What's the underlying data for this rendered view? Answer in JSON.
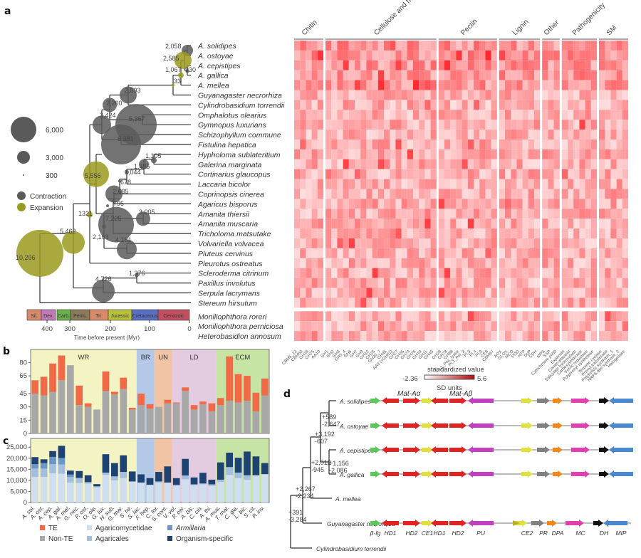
{
  "panels": {
    "a": "a",
    "b": "b",
    "c": "c",
    "d": "d"
  },
  "panel_a": {
    "species": [
      "A. solidipes",
      "A. ostoyae",
      "A. cepistipes",
      "A. gallica",
      "A. mellea",
      "Guyanagaster necrorhiza",
      "Cylindrobasidium torrendii",
      "Omphalotus olearius",
      "Gymnopus luxurians",
      "Schizophyllum commune",
      "Fistulina hepatica",
      "Hypholoma sublateritium",
      "Galerina marginata",
      "Cortinarius glaucopus",
      "Laccaria bicolor",
      "Coprinopsis cinerea",
      "Agaricus bisporus",
      "Amanita thiersii",
      "Amanita muscaria",
      "Tricholoma matsutake",
      "Volvariella volvacea",
      "Pluteus cervinus",
      "Pleurotus ostreatus",
      "Scleroderma citrinum",
      "Paxillus involutus",
      "Serpula lacrymans",
      "Stereum hirsutum",
      "Moniliophthora roreri",
      "Moniliophthora perniciosa",
      "Heterobasidion annosum"
    ],
    "nodes": [
      {
        "label": "2,058",
        "type": "contraction",
        "value": 2058
      },
      {
        "label": "2,585",
        "type": "expansion",
        "value": 2585
      },
      {
        "label": "1,067",
        "type": "expansion",
        "value": 1067
      },
      {
        "label": "930",
        "type": "contraction",
        "value": 930
      },
      {
        "label": "33",
        "type": "expansion",
        "value": 33
      },
      {
        "label": "2,893",
        "type": "contraction",
        "value": 2893
      },
      {
        "label": "2,260",
        "type": "contraction",
        "value": 2260
      },
      {
        "label": "3,424",
        "type": "contraction",
        "value": 3424
      },
      {
        "label": "5,367",
        "type": "contraction",
        "value": 5367
      },
      {
        "label": "8,381",
        "type": "contraction",
        "value": 8381
      },
      {
        "label": "1,105",
        "type": "contraction",
        "value": 1105
      },
      {
        "label": "1,485",
        "type": "contraction",
        "value": 1485
      },
      {
        "label": "1,044",
        "type": "contraction",
        "value": 1044
      },
      {
        "label": "5,556",
        "type": "expansion",
        "value": 5556
      },
      {
        "label": "678",
        "type": "contraction",
        "value": 678
      },
      {
        "label": "2,685",
        "type": "contraction",
        "value": 2685
      },
      {
        "label": "795",
        "type": "contraction",
        "value": 795
      },
      {
        "label": "3,005",
        "type": "contraction",
        "value": 3005
      },
      {
        "label": "1321",
        "type": "expansion",
        "value": 1321
      },
      {
        "label": "7,225",
        "type": "contraction",
        "value": 7225
      },
      {
        "label": "2,163",
        "type": "contraction",
        "value": 2163
      },
      {
        "label": "4,181",
        "type": "contraction",
        "value": 4181
      },
      {
        "label": "5,462",
        "type": "expansion",
        "value": 5462
      },
      {
        "label": "10,296",
        "type": "expansion",
        "value": 10296
      },
      {
        "label": "1,376",
        "type": "contraction",
        "value": 1376
      },
      {
        "label": "4,726",
        "type": "contraction",
        "value": 4726
      }
    ],
    "size_legend": [
      {
        "label": "6,000",
        "value": 6000
      },
      {
        "label": "3,000",
        "value": 3000
      },
      {
        "label": "300",
        "value": 300
      }
    ],
    "type_legend": [
      {
        "label": "Contraction",
        "color": "#5a5a5a"
      },
      {
        "label": "Expansion",
        "color": "#9a9a1e"
      }
    ],
    "periods": [
      {
        "label": "Sil.",
        "color": "#d98a6a"
      },
      {
        "label": "Dev.",
        "color": "#c07ab8"
      },
      {
        "label": "Carb.",
        "color": "#6ab04c"
      },
      {
        "label": "Perm.",
        "color": "#8a7a5a"
      },
      {
        "label": "Tri.",
        "color": "#d98a6a"
      },
      {
        "label": "Jurassic",
        "color": "#b9c23a"
      },
      {
        "label": "Cretaceous",
        "color": "#5a6fc0"
      },
      {
        "label": "Cenozoic",
        "color": "#c05060"
      }
    ],
    "time_ticks": [
      "400",
      "300",
      "200",
      "100",
      "0"
    ],
    "time_axis_label": "Time before present (Myr)",
    "heatmap": {
      "groups": [
        "Chitin",
        "Cellulose and hemicellulose",
        "Pectin",
        "Lignin",
        "Other",
        "Pathogenicity",
        "SM"
      ],
      "columns": [
        "CBM5_12",
        "CBM50",
        "GH18",
        "GH75",
        "AA10",
        "GH1",
        "GH2",
        "GH3",
        "GH5_4",
        "GH6",
        "GH7",
        "GH9",
        "GH12",
        "GH26",
        "GH30_7",
        "GH45",
        "AA9 (=GH61)",
        "GH27",
        "GH35",
        "GH74",
        "GH76",
        "GH10",
        "GH11",
        "GH43",
        "GH28",
        "GH78",
        "GH88",
        "PL1_Pec_lyase",
        "PL1_Pel_3",
        "PL3",
        "PL4",
        "PL9",
        "CE8",
        "CBM67",
        "AOX",
        "GLOX",
        "MCO",
        "POD",
        "HTP",
        "DyP",
        "CDH",
        "MPS",
        "SSP",
        "Cytochrome p450",
        "Expansin",
        "Cerato-platanin",
        "Salicylate hydroxylase",
        "Carboxylesterase",
        "Ferric reductase",
        "Polyprenyl synthetase",
        "Terpene cyclase",
        "Prenyl transferase",
        "Polyketide synthase_1",
        "NRPS-like synthase_2",
        "Halogenase"
      ],
      "scale_title": "standardized value",
      "scale_min": "-2.36",
      "scale_max": "5.6",
      "scale_unit": "SD units",
      "color_low": "#ffffff",
      "color_high": "#d7191c"
    }
  },
  "chart_data": [
    {
      "type": "bar",
      "panel": "b",
      "stacked": true,
      "categories": [
        "A. sol.",
        "A. ost.",
        "A. cep.",
        "A. gal.",
        "A. mel.",
        "G. nec.",
        "P. ost.",
        "O. ole.",
        "G. lux.",
        "H. sub.",
        "G. mar.",
        "S. hir.",
        "S. lac.",
        "F. hep.",
        "C. tor.",
        "S. com.",
        "V. vol.",
        "P. cer.",
        "A. bis.",
        "C. cin.",
        "A. thi.",
        "A. mus.",
        "T. mat.",
        "C. gla.",
        "L. bic.",
        "S. cit.",
        "P. inv."
      ],
      "series": [
        {
          "name": "Non-TE",
          "color": "#a8a8a8",
          "values": [
            45,
            43,
            47,
            60,
            77,
            32,
            30,
            27,
            48,
            44,
            50,
            27,
            32,
            28,
            30,
            34,
            34,
            48,
            27,
            33,
            25,
            32,
            37,
            35,
            37,
            25,
            43
          ]
        },
        {
          "name": "TE",
          "color": "#f06a48",
          "values": [
            15,
            21,
            32,
            28,
            0,
            22,
            4,
            0,
            22,
            3,
            13,
            2,
            13,
            5,
            0,
            4,
            1,
            4,
            5,
            3,
            9,
            8,
            50,
            32,
            28,
            21,
            19
          ]
        }
      ],
      "ylim": [
        0,
        90
      ],
      "yticks": [
        0,
        15,
        30,
        45,
        65,
        80
      ],
      "regions": [
        {
          "label": "WR",
          "color": "#f3f3c4",
          "from": 0,
          "to": 11
        },
        {
          "label": "BR",
          "color": "#b4c8e8",
          "from": 12,
          "to": 13
        },
        {
          "label": "UN",
          "color": "#f0c4a4",
          "from": 14,
          "to": 15
        },
        {
          "label": "LD",
          "color": "#e4cce0",
          "from": 16,
          "to": 20
        },
        {
          "label": "ECM",
          "color": "#c8e4a4",
          "from": 21,
          "to": 26
        }
      ],
      "xlabel": "",
      "ylabel": ""
    },
    {
      "type": "bar",
      "panel": "c",
      "stacked": true,
      "categories": [
        "A. sol.",
        "A. ost.",
        "A. cep.",
        "A. gal.",
        "A. mel.",
        "G. nec.",
        "P. ost.",
        "O. ole.",
        "G. lux.",
        "H. sub.",
        "G. mar.",
        "S. hir.",
        "S. lac.",
        "F. hep.",
        "C. tor.",
        "S. com.",
        "V. vol.",
        "P. cer.",
        "A. bis.",
        "C. cin.",
        "A. thi.",
        "A. mus.",
        "T. mat.",
        "C. gla.",
        "L. bic.",
        "S. cit.",
        "P. inv."
      ],
      "series": [
        {
          "name": "Agaricomycetidae",
          "color": "#cfdff0",
          "values": [
            11500,
            11500,
            13200,
            13000,
            9000,
            8800,
            8500,
            6800,
            12500,
            10000,
            11000,
            9500,
            9000,
            8000,
            9000,
            9000,
            7500,
            10500,
            7800,
            8200,
            7500,
            9300,
            12500,
            11000,
            10300,
            12300,
            12800
          ]
        },
        {
          "name": "Agaricales",
          "color": "#a4bedf",
          "values": [
            3800,
            3800,
            4100,
            4200,
            2500,
            2300,
            700,
            500,
            1000,
            1800,
            2800,
            0,
            0,
            0,
            500,
            0,
            500,
            1700,
            400,
            400,
            700,
            1000,
            3500,
            2500,
            2000,
            0,
            0
          ]
        },
        {
          "name": "Armillaria",
          "color": "#6a96c8",
          "values": [
            2000,
            2500,
            3300,
            2900,
            1100,
            0,
            0,
            0,
            0,
            0,
            0,
            0,
            0,
            0,
            0,
            0,
            0,
            0,
            0,
            0,
            0,
            0,
            0,
            0,
            0,
            0,
            0
          ]
        },
        {
          "name": "Organism-specific",
          "color": "#1e4272",
          "values": [
            3200,
            1700,
            2600,
            5500,
            1800,
            3100,
            3100,
            1000,
            8300,
            6000,
            7500,
            4500,
            3700,
            3000,
            4300,
            7300,
            3000,
            7500,
            3100,
            4800,
            2100,
            7800,
            6500,
            6700,
            10700,
            8500,
            5000
          ]
        }
      ],
      "ylim": [
        0,
        27000
      ],
      "yticks": [
        0,
        5000,
        10000,
        15000,
        20000,
        25000
      ],
      "ytick_labels": [
        "0",
        "5,000",
        "10,000",
        "15,000",
        "20,000",
        "25,000"
      ],
      "regions": [
        {
          "label": "",
          "color": "#f3f3c4",
          "from": 0,
          "to": 11
        },
        {
          "label": "",
          "color": "#b4c8e8",
          "from": 12,
          "to": 13
        },
        {
          "label": "",
          "color": "#f0c4a4",
          "from": 14,
          "to": 15
        },
        {
          "label": "",
          "color": "#e4cce0",
          "from": 16,
          "to": 20
        },
        {
          "label": "",
          "color": "#c8e4a4",
          "from": 21,
          "to": 26
        }
      ],
      "legend": [
        {
          "label": "TE",
          "color": "#f06a48"
        },
        {
          "label": "Non-TE",
          "color": "#a8a8a8"
        },
        {
          "label": "Agaricomycetidae",
          "color": "#cfdff0"
        },
        {
          "label": "Agaricales",
          "color": "#a4bedf"
        },
        {
          "label": "Armillaria",
          "color": "#6a96c8",
          "italic": true
        },
        {
          "label": "Organism-specific",
          "color": "#1e4272"
        }
      ],
      "xlabel": "",
      "ylabel": ""
    }
  ],
  "panel_d": {
    "mat_labels": [
      "Mat-Aα",
      "Mat-Aβ"
    ],
    "species": [
      "A. solidipes",
      "A. ostoyae",
      "A. cepistipes",
      "A. gallica",
      "A. mellea",
      "Guyanagaster necrorhiza",
      "Cylindrobasidium torrendii"
    ],
    "tree_labels": [
      "+589",
      "-2,647",
      "+3,192",
      "-607",
      "+1,156",
      "-2,086",
      "+2,012",
      "-945",
      "+2,267",
      "-2,234",
      "+391",
      "-3,284"
    ],
    "genes": [
      "β-fg",
      "HD1",
      "HD2",
      "CE1",
      "HD1",
      "HD2",
      "PU",
      "CE2",
      "PR",
      "DPA",
      "MC",
      "DH",
      "MIP"
    ],
    "gene_colors": {
      "beta-fg": "#5cc85a",
      "HD": "#e02424",
      "CE": "#e0e040",
      "PU": "#c040c0",
      "PR": "#808080",
      "DPA": "#f08820",
      "MC": "#e040b0",
      "DH": "#111111",
      "MIP": "#4a88d0",
      "extra": "#b4b030"
    }
  }
}
